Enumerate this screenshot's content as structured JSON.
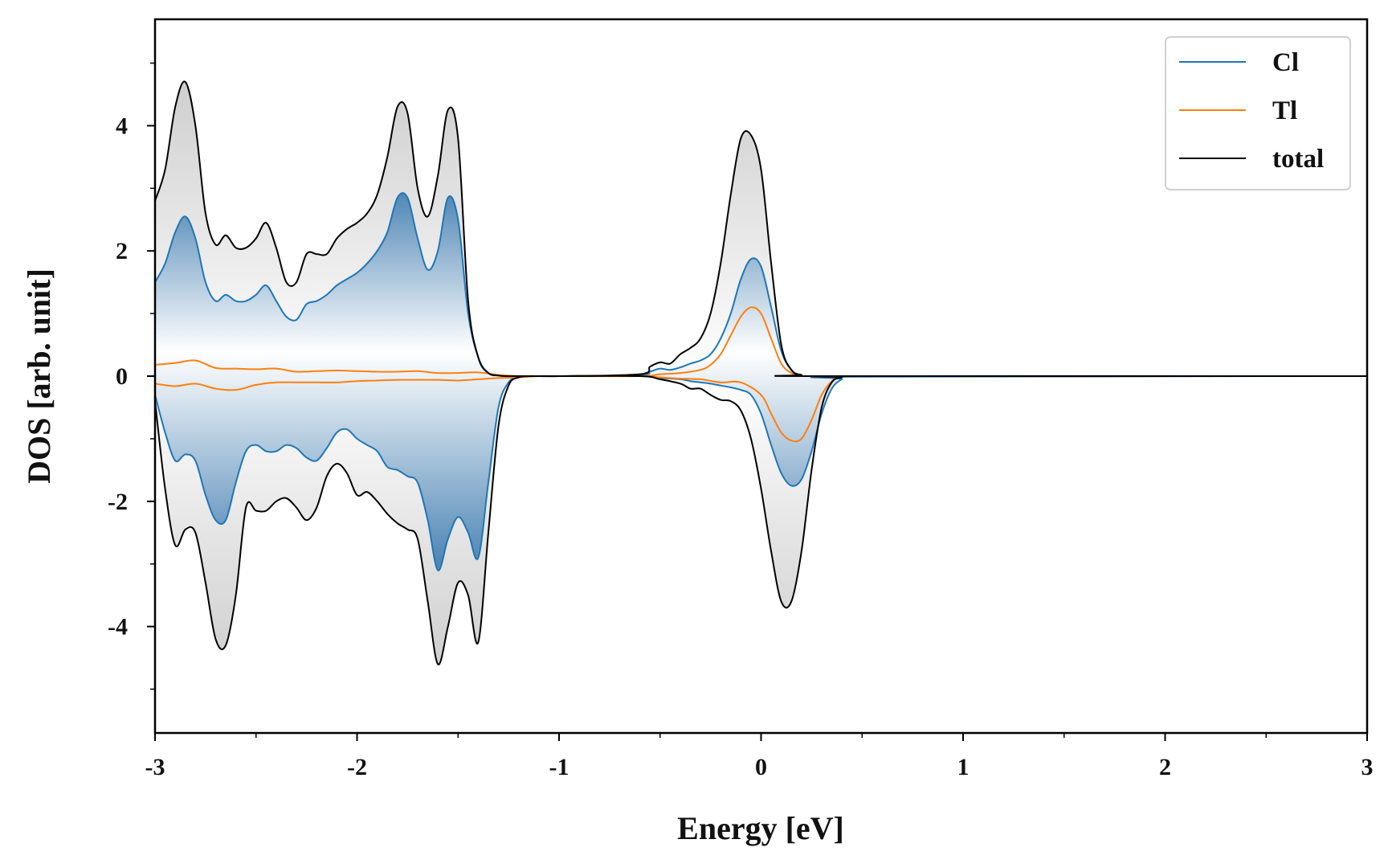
{
  "colors": {
    "cl": "#1f77b4",
    "tl": "#ff7f0e",
    "total": "#000000",
    "fill_total": "#c8c8c8",
    "fill_cl": "#5b8db8"
  },
  "chart_data": {
    "type": "line",
    "xlabel": "Energy [eV]",
    "ylabel": "DOS [arb. unit]",
    "xlim": [
      -3,
      3
    ],
    "ylim": [
      -5.7,
      5.7
    ],
    "xticks": [
      -3,
      -2,
      -1,
      0,
      1,
      2,
      3
    ],
    "xtick_labels": [
      "-3",
      "-2",
      "-1",
      "0",
      "1",
      "2",
      "3"
    ],
    "yticks": [
      -4,
      -2,
      0,
      2,
      4
    ],
    "ytick_labels": [
      "-4",
      "-2",
      "0",
      "2",
      "4"
    ],
    "grid": false,
    "legend_position": "top-right",
    "fill_between": "total and Cl curves are filled to zero with a vertical gradient",
    "series": [
      {
        "name": "Cl",
        "color": "#1f77b4",
        "up": {
          "x": [
            -3.0,
            -2.95,
            -2.9,
            -2.85,
            -2.8,
            -2.75,
            -2.7,
            -2.65,
            -2.6,
            -2.55,
            -2.5,
            -2.45,
            -2.4,
            -2.35,
            -2.3,
            -2.25,
            -2.2,
            -2.15,
            -2.1,
            -2.05,
            -2.0,
            -1.95,
            -1.9,
            -1.85,
            -1.8,
            -1.75,
            -1.7,
            -1.65,
            -1.6,
            -1.55,
            -1.5,
            -1.45,
            -1.4,
            -1.35,
            -1.3,
            -1.25,
            -1.2,
            -1.1,
            -1.0,
            -0.6,
            -0.55,
            -0.5,
            -0.45,
            -0.4,
            -0.35,
            -0.3,
            -0.25,
            -0.2,
            -0.15,
            -0.1,
            -0.05,
            0.0,
            0.05,
            0.1,
            0.15,
            0.2,
            0.3,
            3.0
          ],
          "y": [
            1.5,
            1.8,
            2.3,
            2.55,
            2.2,
            1.5,
            1.2,
            1.3,
            1.2,
            1.2,
            1.3,
            1.45,
            1.2,
            0.95,
            0.9,
            1.15,
            1.2,
            1.3,
            1.45,
            1.55,
            1.65,
            1.8,
            2.0,
            2.3,
            2.85,
            2.85,
            2.2,
            1.7,
            2.0,
            2.85,
            2.5,
            1.0,
            0.3,
            0.05,
            0.01,
            0.0,
            0.0,
            0.0,
            0.0,
            0.02,
            0.07,
            0.12,
            0.1,
            0.14,
            0.2,
            0.25,
            0.35,
            0.6,
            1.0,
            1.55,
            1.87,
            1.75,
            1.1,
            0.4,
            0.1,
            0.02,
            0.0,
            0.0
          ]
        },
        "down": {
          "x": [
            -3.0,
            -2.95,
            -2.9,
            -2.85,
            -2.8,
            -2.75,
            -2.7,
            -2.65,
            -2.6,
            -2.55,
            -2.5,
            -2.45,
            -2.4,
            -2.35,
            -2.3,
            -2.25,
            -2.2,
            -2.15,
            -2.1,
            -2.05,
            -2.0,
            -1.95,
            -1.9,
            -1.85,
            -1.8,
            -1.75,
            -1.7,
            -1.65,
            -1.6,
            -1.55,
            -1.5,
            -1.45,
            -1.4,
            -1.35,
            -1.3,
            -1.25,
            -1.2,
            -1.15,
            -1.1,
            -1.05,
            -1.0,
            -0.6,
            -0.5,
            -0.4,
            -0.35,
            -0.3,
            -0.25,
            -0.2,
            -0.15,
            -0.1,
            -0.05,
            0.0,
            0.05,
            0.1,
            0.15,
            0.2,
            0.25,
            0.3,
            0.35,
            0.4,
            0.45,
            3.0
          ],
          "y": [
            -0.3,
            -0.9,
            -1.35,
            -1.25,
            -1.35,
            -1.9,
            -2.3,
            -2.3,
            -1.7,
            -1.2,
            -1.1,
            -1.2,
            -1.2,
            -1.1,
            -1.15,
            -1.3,
            -1.35,
            -1.15,
            -0.9,
            -0.85,
            -1.0,
            -1.1,
            -1.2,
            -1.45,
            -1.5,
            -1.6,
            -1.7,
            -2.3,
            -3.1,
            -2.6,
            -2.25,
            -2.5,
            -2.9,
            -1.7,
            -0.5,
            -0.1,
            -0.01,
            0.0,
            0.0,
            0.0,
            0.0,
            0.0,
            -0.03,
            -0.05,
            -0.08,
            -0.1,
            -0.12,
            -0.15,
            -0.18,
            -0.22,
            -0.3,
            -0.6,
            -1.1,
            -1.55,
            -1.75,
            -1.65,
            -1.2,
            -0.6,
            -0.2,
            -0.05,
            -0.01,
            0.0
          ]
        }
      },
      {
        "name": "Tl",
        "color": "#ff7f0e",
        "up": {
          "x": [
            -3.0,
            -2.9,
            -2.8,
            -2.7,
            -2.6,
            -2.5,
            -2.4,
            -2.3,
            -2.2,
            -2.1,
            -2.0,
            -1.9,
            -1.8,
            -1.7,
            -1.6,
            -1.5,
            -1.4,
            -1.3,
            -1.2,
            -1.1,
            -1.0,
            -0.6,
            -0.5,
            -0.4,
            -0.3,
            -0.25,
            -0.2,
            -0.15,
            -0.1,
            -0.05,
            0.0,
            0.05,
            0.1,
            0.15,
            0.2,
            0.3,
            3.0
          ],
          "y": [
            0.18,
            0.21,
            0.25,
            0.13,
            0.12,
            0.11,
            0.12,
            0.07,
            0.08,
            0.09,
            0.08,
            0.07,
            0.07,
            0.08,
            0.05,
            0.05,
            0.06,
            0.02,
            0.0,
            0.0,
            0.0,
            0.0,
            0.03,
            0.05,
            0.1,
            0.18,
            0.35,
            0.65,
            0.95,
            1.1,
            1.0,
            0.6,
            0.2,
            0.05,
            0.01,
            0.0,
            0.0
          ]
        },
        "down": {
          "x": [
            -3.0,
            -2.9,
            -2.8,
            -2.7,
            -2.6,
            -2.5,
            -2.4,
            -2.3,
            -2.2,
            -2.1,
            -2.0,
            -1.9,
            -1.8,
            -1.7,
            -1.6,
            -1.5,
            -1.4,
            -1.3,
            -1.2,
            -1.1,
            -1.0,
            -0.6,
            -0.5,
            -0.4,
            -0.3,
            -0.2,
            -0.1,
            0.0,
            0.05,
            0.1,
            0.15,
            0.2,
            0.25,
            0.3,
            0.35,
            0.4,
            0.45,
            3.0
          ],
          "y": [
            -0.12,
            -0.16,
            -0.12,
            -0.2,
            -0.22,
            -0.14,
            -0.1,
            -0.1,
            -0.1,
            -0.1,
            -0.08,
            -0.07,
            -0.06,
            -0.06,
            -0.06,
            -0.07,
            -0.05,
            -0.03,
            -0.02,
            0.0,
            0.0,
            0.0,
            -0.02,
            -0.04,
            -0.05,
            -0.1,
            -0.1,
            -0.3,
            -0.6,
            -0.9,
            -1.03,
            -1.0,
            -0.7,
            -0.3,
            -0.08,
            -0.01,
            0.0,
            0.0
          ]
        }
      },
      {
        "name": "total",
        "color": "#000000",
        "up": {
          "x": [
            -3.0,
            -2.95,
            -2.9,
            -2.85,
            -2.8,
            -2.75,
            -2.7,
            -2.65,
            -2.6,
            -2.55,
            -2.5,
            -2.45,
            -2.4,
            -2.35,
            -2.3,
            -2.25,
            -2.2,
            -2.15,
            -2.1,
            -2.05,
            -2.0,
            -1.95,
            -1.9,
            -1.85,
            -1.8,
            -1.75,
            -1.7,
            -1.65,
            -1.6,
            -1.55,
            -1.5,
            -1.45,
            -1.4,
            -1.35,
            -1.3,
            -1.25,
            -1.2,
            -1.1,
            -1.0,
            -0.6,
            -0.55,
            -0.5,
            -0.45,
            -0.4,
            -0.35,
            -0.3,
            -0.25,
            -0.2,
            -0.15,
            -0.1,
            -0.05,
            0.0,
            0.05,
            0.1,
            0.15,
            0.2,
            0.3,
            3.0
          ],
          "y": [
            2.8,
            3.3,
            4.3,
            4.7,
            4.0,
            2.6,
            2.1,
            2.25,
            2.05,
            2.05,
            2.2,
            2.45,
            2.05,
            1.5,
            1.5,
            1.95,
            1.95,
            1.95,
            2.2,
            2.35,
            2.45,
            2.6,
            2.9,
            3.5,
            4.3,
            4.2,
            3.0,
            2.55,
            3.2,
            4.25,
            3.8,
            1.2,
            0.3,
            0.05,
            0.01,
            0.0,
            0.0,
            0.0,
            0.0,
            0.03,
            0.15,
            0.22,
            0.2,
            0.35,
            0.45,
            0.6,
            1.0,
            1.8,
            2.9,
            3.8,
            3.85,
            3.3,
            1.8,
            0.5,
            0.1,
            0.02,
            0.0,
            0.0
          ]
        },
        "down": {
          "x": [
            -3.0,
            -2.95,
            -2.9,
            -2.85,
            -2.8,
            -2.75,
            -2.7,
            -2.65,
            -2.6,
            -2.55,
            -2.5,
            -2.45,
            -2.4,
            -2.35,
            -2.3,
            -2.25,
            -2.2,
            -2.15,
            -2.1,
            -2.05,
            -2.0,
            -1.95,
            -1.9,
            -1.85,
            -1.8,
            -1.75,
            -1.7,
            -1.65,
            -1.6,
            -1.55,
            -1.5,
            -1.45,
            -1.4,
            -1.35,
            -1.3,
            -1.25,
            -1.2,
            -1.15,
            -1.1,
            -1.05,
            -1.0,
            -0.6,
            -0.5,
            -0.4,
            -0.35,
            -0.3,
            -0.25,
            -0.2,
            -0.15,
            -0.1,
            -0.05,
            0.0,
            0.05,
            0.1,
            0.15,
            0.2,
            0.25,
            0.3,
            0.35,
            0.4,
            0.45,
            3.0
          ],
          "y": [
            -0.4,
            -1.8,
            -2.7,
            -2.45,
            -2.5,
            -3.3,
            -4.2,
            -4.3,
            -3.5,
            -2.1,
            -2.15,
            -2.15,
            -2.0,
            -1.95,
            -2.1,
            -2.3,
            -2.1,
            -1.6,
            -1.4,
            -1.55,
            -1.9,
            -1.85,
            -2.0,
            -2.2,
            -2.35,
            -2.45,
            -2.6,
            -3.6,
            -4.6,
            -4.0,
            -3.3,
            -3.5,
            -4.25,
            -2.5,
            -0.8,
            -0.15,
            -0.02,
            0.0,
            0.0,
            0.0,
            0.0,
            0.0,
            -0.05,
            -0.12,
            -0.2,
            -0.2,
            -0.3,
            -0.38,
            -0.4,
            -0.55,
            -1.0,
            -1.8,
            -2.8,
            -3.6,
            -3.6,
            -2.8,
            -1.5,
            -0.5,
            -0.1,
            -0.02,
            0.0,
            0.0
          ]
        }
      }
    ]
  }
}
